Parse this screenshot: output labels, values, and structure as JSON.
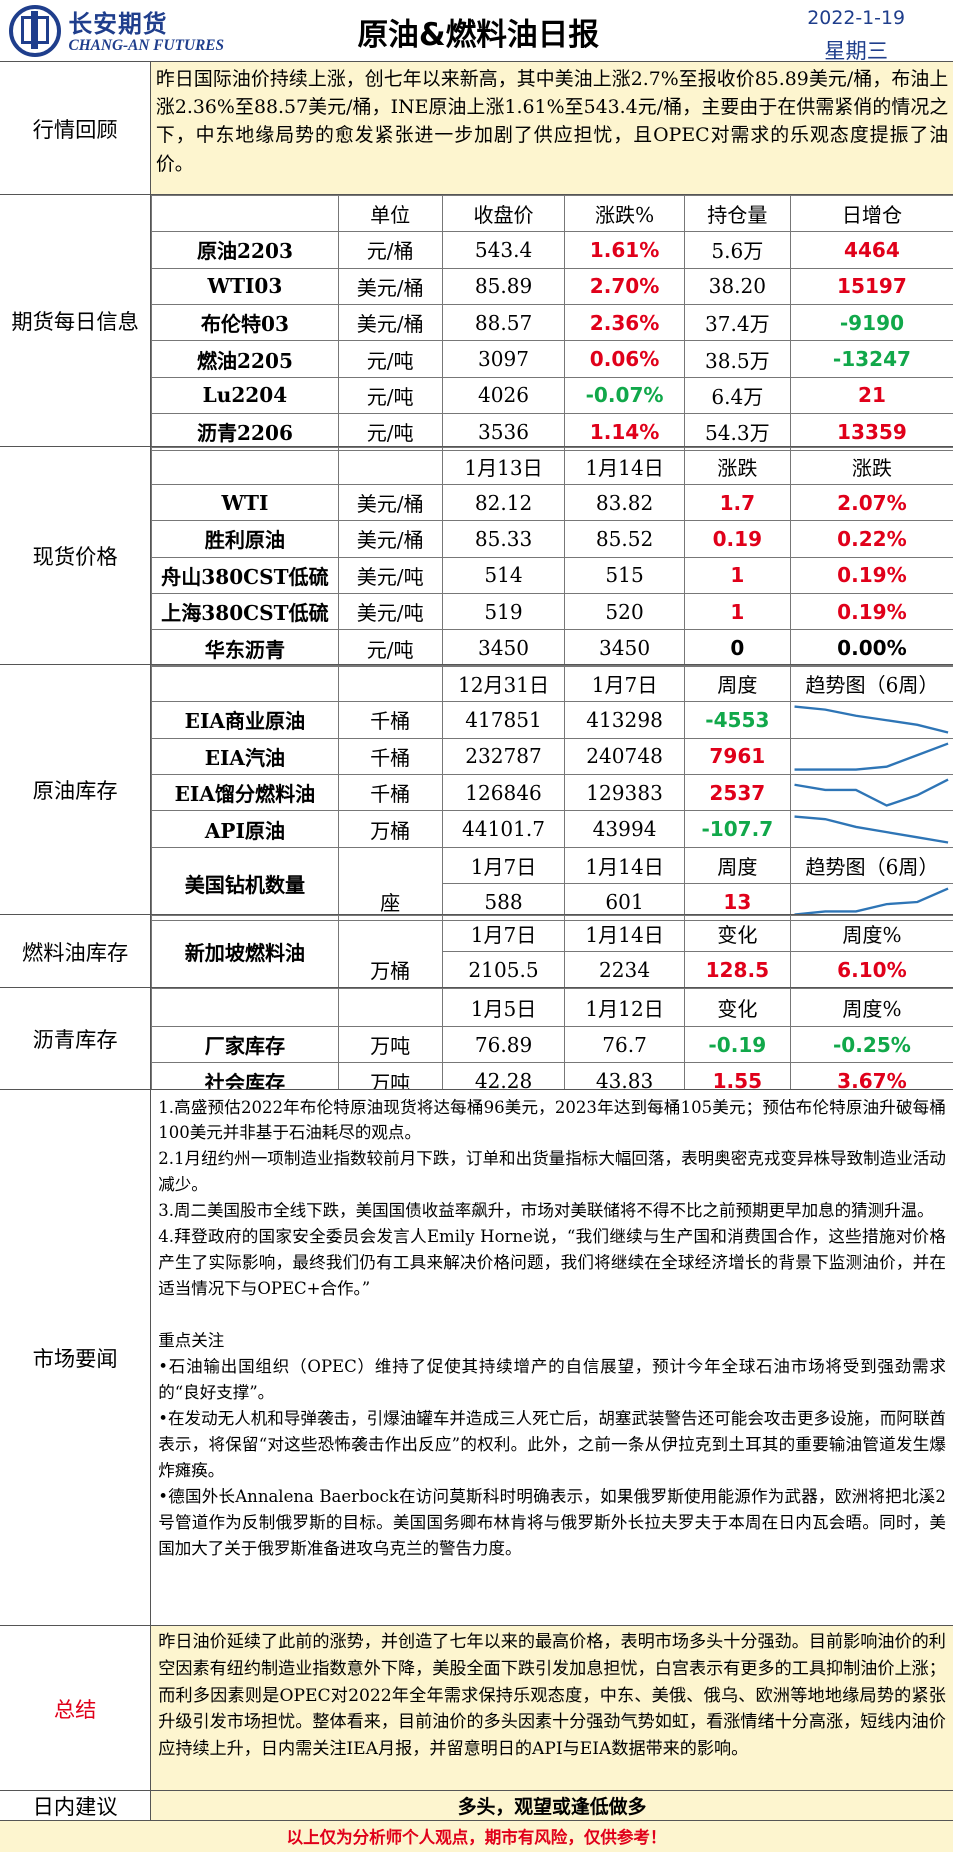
{
  "header": {
    "brand_cn": "长安期货",
    "brand_en": "CHANG-AN FUTURES",
    "title": "原油&燃料油日报",
    "date": "2022-1-19",
    "weekday": "星期三"
  },
  "review": {
    "label": "行情回顾",
    "text": "昨日国际油价持续上涨，创七年以来新高，其中美油上涨2.7%至报收价85.89美元/桶，布油上涨2.36%至88.57美元/桶，INE原油上涨1.61%至543.4元/桶，主要由于在供需紧俏的情况之下，中东地缘局势的愈发紧张进一步加剧了供应担忧，且OPEC对需求的乐观态度提振了油价。"
  },
  "futures": {
    "label": "期货每日信息",
    "headers": [
      "",
      "单位",
      "收盘价",
      "涨跌%",
      "持仓量",
      "日增仓"
    ],
    "rows": [
      {
        "name": "原油2203",
        "unit": "元/桶",
        "close": "543.4",
        "chg": "1.61%",
        "oi": "5.6万",
        "add": "4464"
      },
      {
        "name": "WTI03",
        "unit": "美元/桶",
        "close": "85.89",
        "chg": "2.70%",
        "oi": "38.20",
        "add": "15197"
      },
      {
        "name": "布伦特03",
        "unit": "美元/桶",
        "close": "88.57",
        "chg": "2.36%",
        "oi": "37.4万",
        "add": "-9190"
      },
      {
        "name": "燃油2205",
        "unit": "元/吨",
        "close": "3097",
        "chg": "0.06%",
        "oi": "38.5万",
        "add": "-13247"
      },
      {
        "name": "Lu2204",
        "unit": "元/吨",
        "close": "4026",
        "chg": "-0.07%",
        "oi": "6.4万",
        "add": "21"
      },
      {
        "name": "沥青2206",
        "unit": "元/吨",
        "close": "3536",
        "chg": "1.14%",
        "oi": "54.3万",
        "add": "13359"
      }
    ]
  },
  "spot": {
    "label": "现货价格",
    "headers": [
      "",
      "",
      "1月13日",
      "1月14日",
      "涨跌",
      "涨跌"
    ],
    "rows": [
      {
        "name": "WTI",
        "unit": "美元/桶",
        "d1": "82.12",
        "d2": "83.82",
        "chg": "1.7",
        "pct": "2.07%"
      },
      {
        "name": "胜利原油",
        "unit": "美元/桶",
        "d1": "85.33",
        "d2": "85.52",
        "chg": "0.19",
        "pct": "0.22%"
      },
      {
        "name": "舟山380CST低硫",
        "unit": "美元/吨",
        "d1": "514",
        "d2": "515",
        "chg": "1",
        "pct": "0.19%"
      },
      {
        "name": "上海380CST低硫",
        "unit": "美元/吨",
        "d1": "519",
        "d2": "520",
        "chg": "1",
        "pct": "0.19%"
      },
      {
        "name": "华东沥青",
        "unit": "元/吨",
        "d1": "3450",
        "d2": "3450",
        "chg": "0",
        "pct": "0.00%"
      }
    ]
  },
  "crude_stock": {
    "label": "原油库存",
    "headers": [
      "",
      "",
      "12月31日",
      "1月7日",
      "周度",
      "趋势图（6周）"
    ],
    "rows": [
      {
        "name": "EIA商业原油",
        "unit": "千桶",
        "d1": "417851",
        "d2": "413298",
        "chg": "-4553",
        "trend": [
          430,
          428,
          424,
          421,
          418,
          413
        ]
      },
      {
        "name": "EIA汽油",
        "unit": "千桶",
        "d1": "232787",
        "d2": "240748",
        "chg": "7961",
        "trend": [
          222,
          222,
          222,
          224,
          232,
          240
        ]
      },
      {
        "name": "EIA馏分燃料油",
        "unit": "千桶",
        "d1": "126846",
        "d2": "129383",
        "chg": "2537",
        "trend": [
          128,
          127,
          127,
          124,
          126,
          129
        ]
      },
      {
        "name": "API原油",
        "unit": "万桶",
        "d1": "44101.7",
        "d2": "43994",
        "chg": "-107.7",
        "trend": [
          45,
          44.9,
          44.6,
          44.4,
          44.2,
          44.0
        ]
      }
    ],
    "rig": {
      "name": "美国钻机数量",
      "headers": [
        "1月7日",
        "1月14日",
        "周度",
        "趋势图（6周）"
      ],
      "unit": "座",
      "d1": "588",
      "d2": "601",
      "chg": "13",
      "trend": [
        576,
        579,
        579,
        586,
        588,
        601
      ]
    }
  },
  "fuel_stock": {
    "label": "燃料油库存",
    "name": "新加坡燃料油",
    "headers": [
      "1月7日",
      "1月14日",
      "变化",
      "周度%"
    ],
    "unit": "万桶",
    "d1": "2105.5",
    "d2": "2234",
    "chg": "128.5",
    "pct": "6.10%"
  },
  "asphalt_stock": {
    "label": "沥青库存",
    "headers": [
      "1月5日",
      "1月12日",
      "变化",
      "周度%"
    ],
    "rows": [
      {
        "name": "厂家库存",
        "unit": "万吨",
        "d1": "76.89",
        "d2": "76.7",
        "chg": "-0.19",
        "pct": "-0.25%"
      },
      {
        "name": "社会库存",
        "unit": "万吨",
        "d1": "42.28",
        "d2": "43.83",
        "chg": "1.55",
        "pct": "3.67%"
      }
    ]
  },
  "news": {
    "label": "市场要闻",
    "items": [
      "1.高盛预估2022年布伦特原油现货将达每桶96美元，2023年达到每桶105美元；预估布伦特原油升破每桶100美元并非基于石油耗尽的观点。",
      "2.1月纽约州一项制造业指数较前月下跌，订单和出货量指标大幅回落，表明奥密克戎变异株导致制造业活动减少。",
      "3.周二美国股市全线下跌，美国国债收益率飙升，市场对美联储将不得不比之前预期更早加息的猜测升温。",
      "4.拜登政府的国家安全委员会发言人Emily Horne说，“我们继续与生产国和消费国合作，这些措施对价格产生了实际影响，最终我们仍有工具来解决价格问题，我们将继续在全球经济增长的背景下监测油价，并在适当情况下与OPEC+合作。”"
    ],
    "focus_title": "重点关注",
    "focus": [
      "•石油输出国组织（OPEC）维持了促使其持续增产的自信展望，预计今年全球石油市场将受到强劲需求的“良好支撑”。",
      "•在发动无人机和导弹袭击，引爆油罐车并造成三人死亡后，胡塞武装警告还可能会攻击更多设施，而阿联酋表示，将保留“对这些恐怖袭击作出反应”的权利。此外，之前一条从伊拉克到土耳其的重要输油管道发生爆炸瘫痪。",
      "•德国外长Annalena Baerbock在访问莫斯科时明确表示，如果俄罗斯使用能源作为武器，欧洲将把北溪2号管道作为反制俄罗斯的目标。美国国务卿布林肯将与俄罗斯外长拉夫罗夫于本周在日内瓦会晤。同时，美国加大了关于俄罗斯准备进攻乌克兰的警告力度。"
    ]
  },
  "summary": {
    "label": "总结",
    "text": "昨日油价延续了此前的涨势，并创造了七年以来的最高价格，表明市场多头十分强劲。目前影响油价的利空因素有纽约制造业指数意外下降，美股全面下跌引发加息担忧，白宫表示有更多的工具抑制油价上涨；而利多因素则是OPEC对2022年全年需求保持乐观态度，中东、美俄、俄乌、欧洲等地地缘局势的紧张升级引发市场担忧。整体看来，目前油价的多头因素十分强劲气势如虹，看涨情绪十分高涨，短线内油价应持续上升，日内需关注IEA月报，并留意明日的API与EIA数据带来的影响。"
  },
  "advice": {
    "label": "日内建议",
    "text": "多头，观望或逢低做多"
  },
  "footer": "以上仅为分析师个人观点，期市有风险，仅供参考！",
  "colors": {
    "up": "#e0001a",
    "down": "#11a84a",
    "trend_line": "#2e75b6",
    "highlight_bg": "#fdf5cf",
    "brand": "#1f3e8c"
  }
}
